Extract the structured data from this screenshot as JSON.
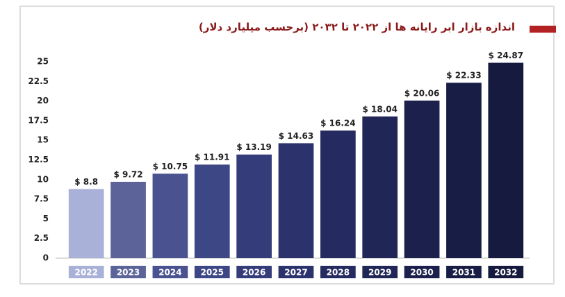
{
  "chart_data": {
    "type": "bar",
    "title": "اندازه بازار ابر رایانه ها از ۲۰۲۲ تا ۲۰۳۲ (برحسب میلیارد دلار)",
    "categories": [
      "2022",
      "2023",
      "2024",
      "2025",
      "2026",
      "2027",
      "2028",
      "2029",
      "2030",
      "2031",
      "2032"
    ],
    "values": [
      8.8,
      9.72,
      10.75,
      11.91,
      13.19,
      14.63,
      16.24,
      18.04,
      20.06,
      22.33,
      24.87
    ],
    "value_labels": [
      "$ 8.8",
      "$ 9.72",
      "$ 10.75",
      "$ 11.91",
      "$ 13.19",
      "$ 14.63",
      "$ 16.24",
      "$ 18.04",
      "$ 20.06",
      "$ 22.33",
      "$ 24.87"
    ],
    "colors": [
      "#a9b1d8",
      "#5b6399",
      "#4a5390",
      "#3e4785",
      "#343c79",
      "#2c336c",
      "#252b60",
      "#202656",
      "#1b214c",
      "#181d45",
      "#151a3e"
    ],
    "ylim": [
      0,
      25
    ],
    "yticks": [
      0,
      2.5,
      5,
      7.5,
      10,
      12.5,
      15,
      17.5,
      20,
      22.5,
      25
    ],
    "grid": false
  }
}
